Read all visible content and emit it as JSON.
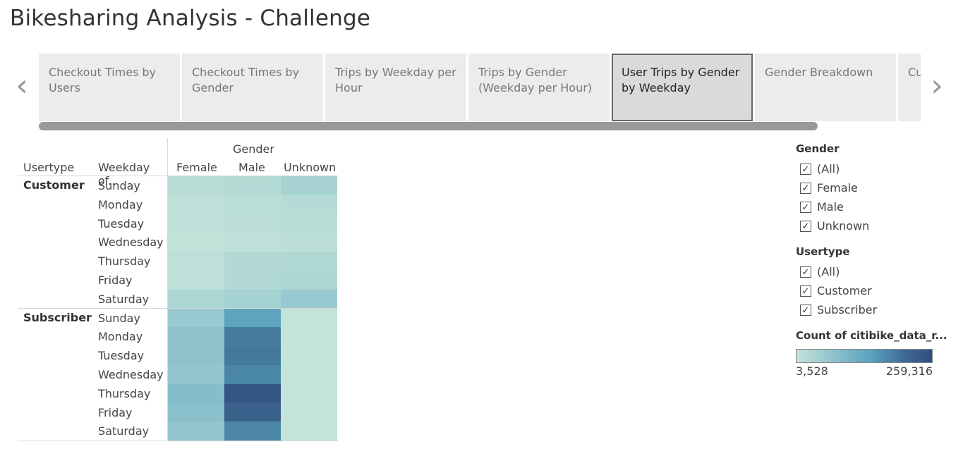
{
  "dashboard": {
    "title": "Bikesharing Analysis - Challenge"
  },
  "navigator": {
    "prev_icon": "chevron-left-icon",
    "next_icon": "chevron-right-icon",
    "tabs": [
      {
        "label": "Checkout Times by Users",
        "active": false
      },
      {
        "label": "Checkout Times by Gender",
        "active": false
      },
      {
        "label": "Trips by Weekday per Hour",
        "active": false
      },
      {
        "label": "Trips by Gender (Weekday per Hour)",
        "active": false
      },
      {
        "label": "User Trips by Gender by Weekday",
        "active": true
      },
      {
        "label": "Gender Breakdown",
        "active": false
      },
      {
        "label": "Cu",
        "active": false
      }
    ]
  },
  "heatmap": {
    "col_group_header": "Gender",
    "row_header_1": "Usertype",
    "row_header_2": "Weekday of..",
    "columns": [
      "Female",
      "Male",
      "Unknown"
    ],
    "groups": [
      {
        "name": "Customer",
        "rows": [
          {
            "day": "Sunday",
            "colors": [
              "#b8ddd6",
              "#b3dad4",
              "#a6d3d2"
            ]
          },
          {
            "day": "Monday",
            "colors": [
              "#bfe1d9",
              "#badfd7",
              "#b4dbd6"
            ]
          },
          {
            "day": "Tuesday",
            "colors": [
              "#c0e1d9",
              "#bbdfd8",
              "#b8ddd7"
            ]
          },
          {
            "day": "Wednesday",
            "colors": [
              "#c3e3da",
              "#bde0d9",
              "#bcdfd8"
            ]
          },
          {
            "day": "Thursday",
            "colors": [
              "#bde0d8",
              "#b2d9d5",
              "#afd8d5"
            ]
          },
          {
            "day": "Friday",
            "colors": [
              "#bde0d8",
              "#b2d9d5",
              "#acd6d4"
            ]
          },
          {
            "day": "Saturday",
            "colors": [
              "#acd6d4",
              "#a5d2d3",
              "#97c9d0"
            ]
          }
        ]
      },
      {
        "name": "Subscriber",
        "rows": [
          {
            "day": "Sunday",
            "colors": [
              "#99cad1",
              "#5fa4bd",
              "#c4e4da"
            ]
          },
          {
            "day": "Monday",
            "colors": [
              "#8ec2cd",
              "#467d9e",
              "#c4e4da"
            ]
          },
          {
            "day": "Tuesday",
            "colors": [
              "#8ec2cd",
              "#437a9c",
              "#c4e4da"
            ]
          },
          {
            "day": "Wednesday",
            "colors": [
              "#93c5cf",
              "#4a86a6",
              "#c4e4da"
            ]
          },
          {
            "day": "Thursday",
            "colors": [
              "#86bdcb",
              "#355683",
              "#c4e4da"
            ]
          },
          {
            "day": "Friday",
            "colors": [
              "#8ac0cc",
              "#3a628c",
              "#c4e4da"
            ]
          },
          {
            "day": "Saturday",
            "colors": [
              "#93c5cf",
              "#4c87a8",
              "#c4e4da"
            ]
          }
        ]
      }
    ]
  },
  "filters": {
    "gender": {
      "title": "Gender",
      "options": [
        "(All)",
        "Female",
        "Male",
        "Unknown"
      ]
    },
    "usertype": {
      "title": "Usertype",
      "options": [
        "(All)",
        "Customer",
        "Subscriber"
      ]
    },
    "check_glyph": "✓"
  },
  "legend": {
    "title": "Count of citibike_data_r...",
    "min_label": "3,528",
    "max_label": "259,316",
    "color_min": "#c4e4da",
    "color_max": "#2f4e7f"
  }
}
